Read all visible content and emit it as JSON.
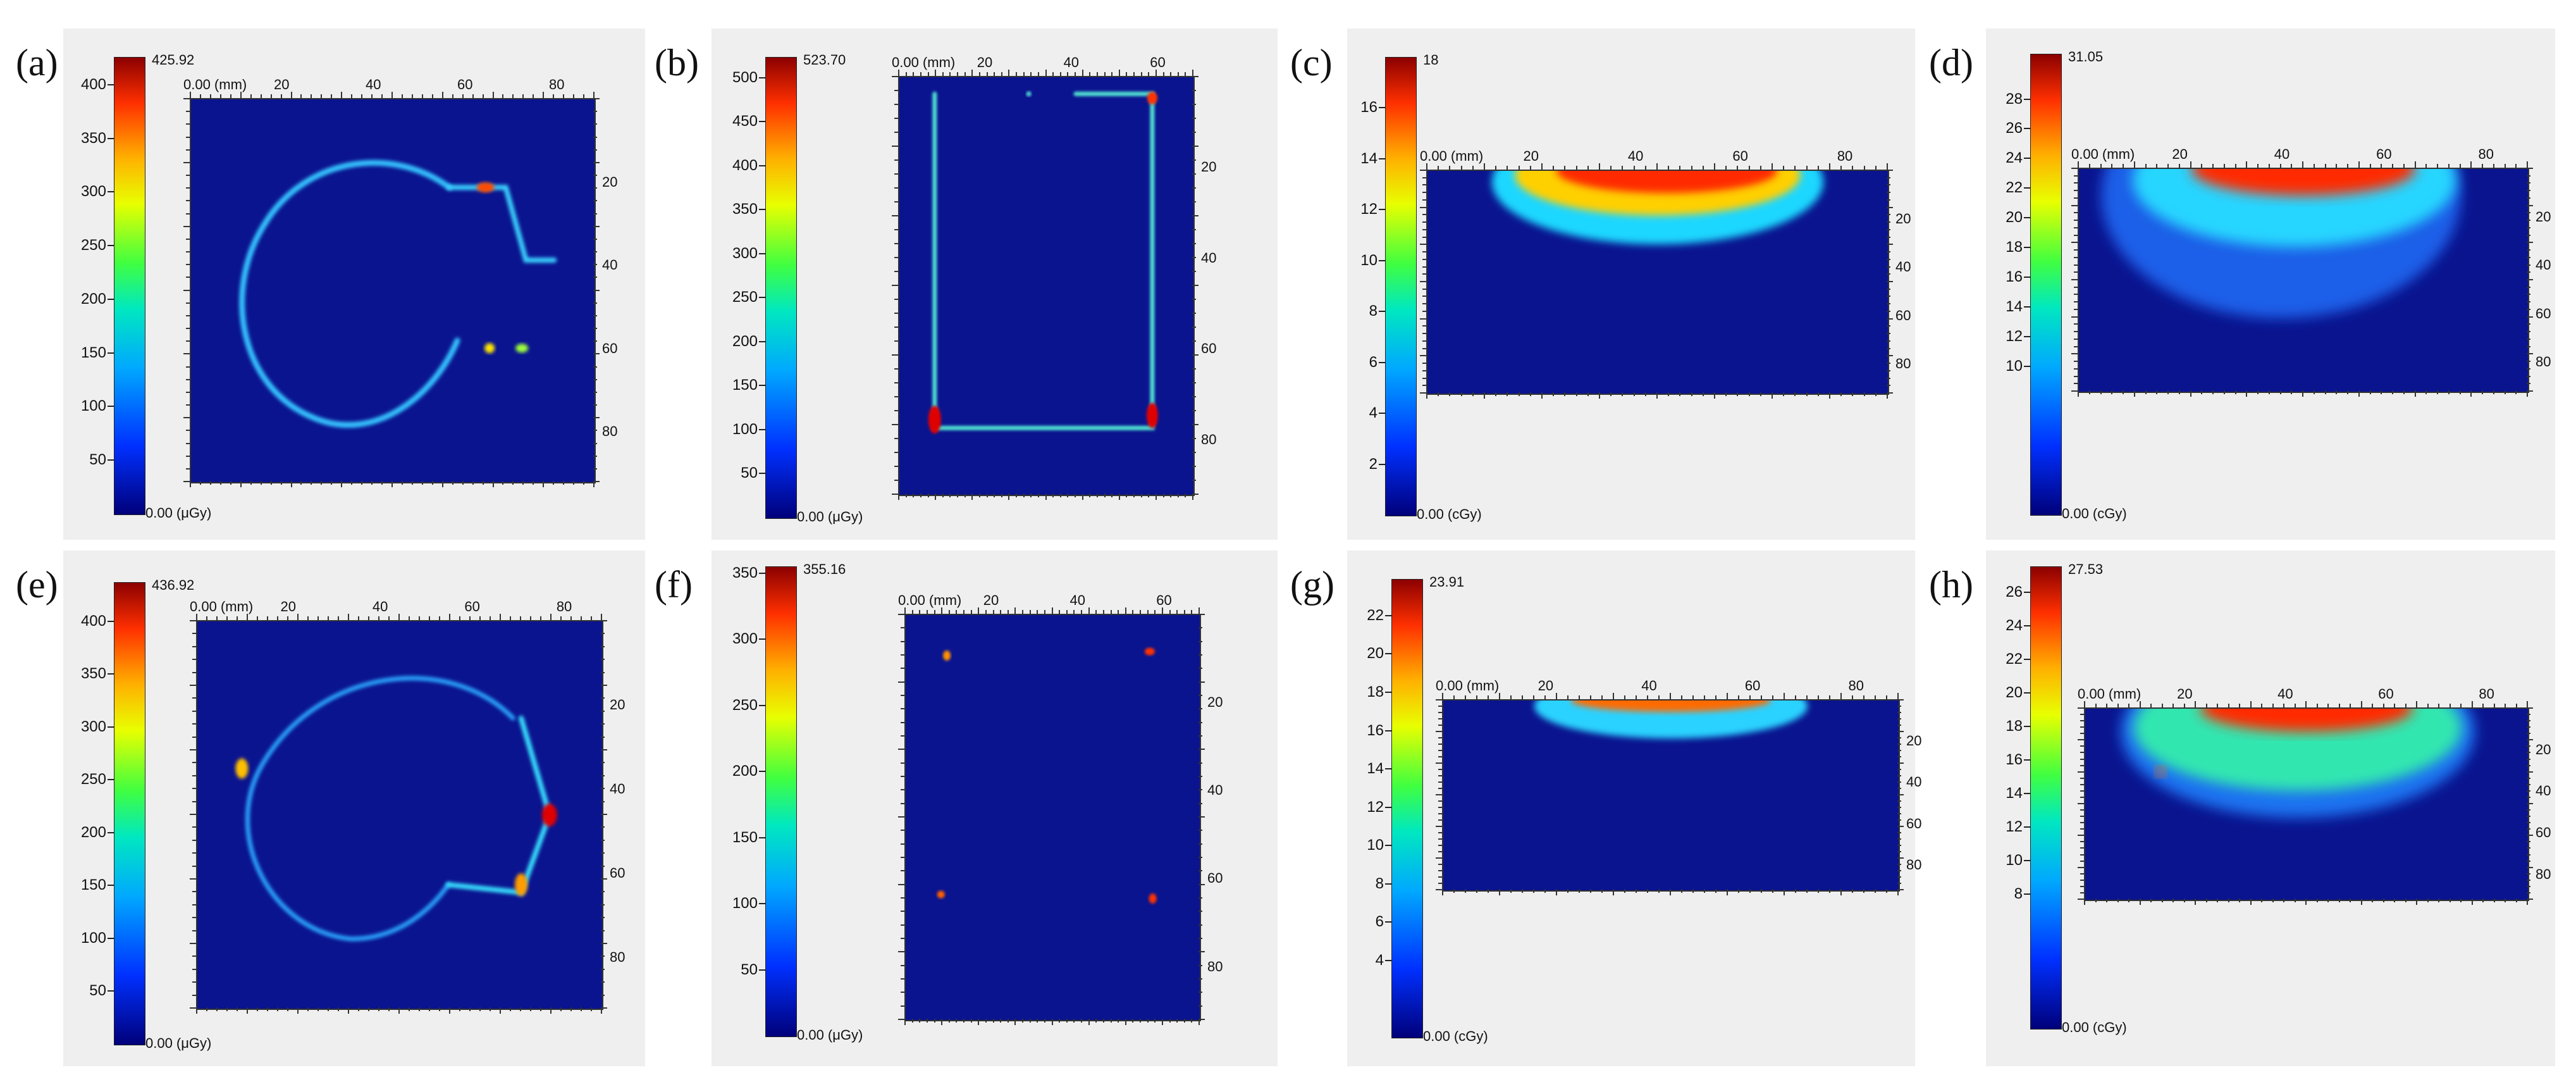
{
  "colors": {
    "background": "#ffffff",
    "panel": "#efefef",
    "map_background": "#0a148f"
  },
  "chart_data": [
    {
      "type": "heatmap",
      "letter": "(a)",
      "cbar_max_label": "425.92",
      "cbar_min_label": "0.00 (μGy)",
      "cbar_ticks": [
        "50",
        "100",
        "150",
        "200",
        "250",
        "300",
        "350",
        "400"
      ],
      "cbar_range": [
        0,
        425.92
      ],
      "x_ticks": [
        "0.00 (mm)",
        "20",
        "40",
        "60",
        "80"
      ],
      "y_ticks": [
        "20",
        "40",
        "60",
        "80"
      ]
    },
    {
      "type": "heatmap",
      "letter": "(b)",
      "cbar_max_label": "523.70",
      "cbar_min_label": "0.00 (μGy)",
      "cbar_ticks": [
        "50",
        "100",
        "150",
        "200",
        "250",
        "300",
        "350",
        "400",
        "450",
        "500"
      ],
      "cbar_range": [
        0,
        523.7
      ],
      "x_ticks": [
        "0.00 (mm)",
        "20",
        "40",
        "60"
      ],
      "y_ticks": [
        "20",
        "40",
        "60",
        "80"
      ]
    },
    {
      "type": "heatmap",
      "letter": "(c)",
      "cbar_max_label": "18",
      "cbar_min_label": "0.00 (cGy)",
      "cbar_ticks": [
        "2",
        "4",
        "6",
        "8",
        "10",
        "12",
        "14",
        "16"
      ],
      "cbar_range": [
        0,
        18
      ],
      "x_ticks": [
        "0.00 (mm)",
        "20",
        "40",
        "60",
        "80"
      ],
      "y_ticks": [
        "20",
        "40",
        "60",
        "80"
      ]
    },
    {
      "type": "heatmap",
      "letter": "(d)",
      "cbar_max_label": "31.05",
      "cbar_min_label": "0.00 (cGy)",
      "cbar_ticks": [
        "10",
        "12",
        "14",
        "16",
        "18",
        "20",
        "22",
        "24",
        "26",
        "28"
      ],
      "cbar_range": [
        0,
        31.05
      ],
      "x_ticks": [
        "0.00 (mm)",
        "20",
        "40",
        "60",
        "80"
      ],
      "y_ticks": [
        "20",
        "40",
        "60",
        "80"
      ]
    },
    {
      "type": "heatmap",
      "letter": "(e)",
      "cbar_max_label": "436.92",
      "cbar_min_label": "0.00 (μGy)",
      "cbar_ticks": [
        "50",
        "100",
        "150",
        "200",
        "250",
        "300",
        "350",
        "400"
      ],
      "cbar_range": [
        0,
        436.92
      ],
      "x_ticks": [
        "0.00 (mm)",
        "20",
        "40",
        "60",
        "80"
      ],
      "y_ticks": [
        "20",
        "40",
        "60",
        "80"
      ]
    },
    {
      "type": "heatmap",
      "letter": "(f)",
      "cbar_max_label": "355.16",
      "cbar_min_label": "0.00 (μGy)",
      "cbar_ticks": [
        "50",
        "100",
        "150",
        "200",
        "250",
        "300",
        "350"
      ],
      "cbar_range": [
        0,
        355.16
      ],
      "x_ticks": [
        "0.00 (mm)",
        "20",
        "40",
        "60"
      ],
      "y_ticks": [
        "20",
        "40",
        "60",
        "80"
      ]
    },
    {
      "type": "heatmap",
      "letter": "(g)",
      "cbar_max_label": "23.91",
      "cbar_min_label": "0.00 (cGy)",
      "cbar_ticks": [
        "4",
        "6",
        "8",
        "10",
        "12",
        "14",
        "16",
        "18",
        "20",
        "22"
      ],
      "cbar_range": [
        0,
        23.91
      ],
      "x_ticks": [
        "0.00 (mm)",
        "20",
        "40",
        "60",
        "80"
      ],
      "y_ticks": [
        "20",
        "40",
        "60",
        "80"
      ]
    },
    {
      "type": "heatmap",
      "letter": "(h)",
      "cbar_max_label": "27.53",
      "cbar_min_label": "0.00 (cGy)",
      "cbar_ticks": [
        "8",
        "10",
        "12",
        "14",
        "16",
        "18",
        "20",
        "22",
        "24",
        "26"
      ],
      "cbar_range": [
        0,
        27.53
      ],
      "x_ticks": [
        "0.00 (mm)",
        "20",
        "40",
        "60",
        "80"
      ],
      "y_ticks": [
        "20",
        "40",
        "60",
        "80"
      ]
    }
  ]
}
